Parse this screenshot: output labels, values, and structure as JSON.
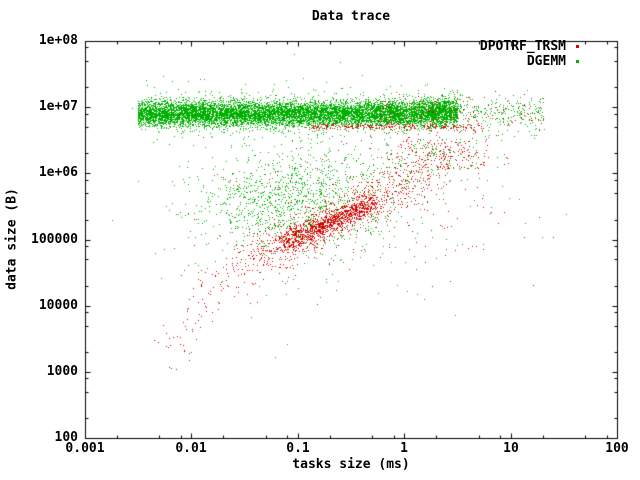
{
  "chart_data": {
    "type": "scatter",
    "title": "Data trace",
    "xlabel": "tasks size (ms)",
    "ylabel": "data size (B)",
    "xscale": "log",
    "yscale": "log",
    "xlim": [
      0.001,
      100
    ],
    "ylim": [
      100,
      100000000
    ],
    "grid": false,
    "marker": "dot",
    "legend_position": "inside-top-right",
    "x_ticks": [
      "0.001",
      "0.01",
      "0.1",
      "1",
      "10",
      "100"
    ],
    "y_ticks": [
      "1e+08",
      "1e+07",
      "1e+06",
      "100000",
      "10000",
      "1000",
      "100"
    ],
    "legend": {
      "items": [
        {
          "label": "DPOTRF_TRSM",
          "color": "#dc0000"
        },
        {
          "label": "DGEMM",
          "color": "#00b000"
        }
      ]
    },
    "seed": 7,
    "clusters_space": "log10(x in ms), log10(y in B); clusters approximate the ~14000 plotted dots",
    "series": [
      {
        "name": "DGEMM",
        "color": "#00b000",
        "clusters": [
          {
            "type": "band",
            "x0": -2.5,
            "x1": 0.5,
            "cy": 6.9,
            "sy": 0.095,
            "count": 9000
          },
          {
            "type": "band",
            "x0": -2.42,
            "x1": 0.55,
            "cy": 6.92,
            "sy": 0.2,
            "count": 600
          },
          {
            "type": "band",
            "x0": 0.45,
            "x1": 1.32,
            "cy": 6.88,
            "sy": 0.14,
            "count": 260
          },
          {
            "type": "blob",
            "cx": 0.33,
            "cy": 7.0,
            "sx": 0.1,
            "sy": 0.07,
            "count": 250
          },
          {
            "type": "blob",
            "cx": -1.05,
            "cy": 5.55,
            "sx": 0.4,
            "sy": 0.35,
            "count": 1000
          },
          {
            "type": "blob",
            "cx": -0.9,
            "cy": 5.6,
            "sx": 0.65,
            "sy": 0.6,
            "count": 350
          },
          {
            "type": "blob",
            "cx": 0.25,
            "cy": 6.22,
            "sx": 0.28,
            "sy": 0.18,
            "count": 160
          },
          {
            "type": "blob",
            "cx": -0.55,
            "cy": 5.9,
            "sx": 0.85,
            "sy": 0.75,
            "count": 120
          },
          {
            "type": "blob",
            "cx": -1.3,
            "cy": 3.9,
            "sx": 0.5,
            "sy": 0.5,
            "count": 6
          }
        ]
      },
      {
        "name": "DPOTRF_TRSM",
        "color": "#dc0000",
        "clusters": [
          {
            "type": "diag",
            "x0": -1.1,
            "y0": 4.93,
            "x1": -0.3,
            "y1": 5.55,
            "jx": 0.07,
            "jy": 0.07,
            "count": 900
          },
          {
            "type": "diag",
            "x0": -1.45,
            "y0": 4.7,
            "x1": 0.1,
            "y1": 5.9,
            "jx": 0.15,
            "jy": 0.13,
            "count": 500
          },
          {
            "type": "diag",
            "x0": -1.85,
            "y0": 4.25,
            "x1": 0.5,
            "y1": 6.35,
            "jx": 0.2,
            "jy": 0.17,
            "count": 350
          },
          {
            "type": "blob",
            "cx": 0.33,
            "cy": 6.28,
            "sx": 0.28,
            "sy": 0.17,
            "count": 180
          },
          {
            "type": "diag",
            "x0": -2.2,
            "y0": 3.4,
            "x1": -1.75,
            "y1": 4.25,
            "jx": 0.08,
            "jy": 0.12,
            "count": 45
          },
          {
            "type": "band",
            "x0": -0.9,
            "x1": 0.75,
            "cy": 6.7,
            "sy": 0.025,
            "count": 220
          },
          {
            "type": "band",
            "x0": -0.3,
            "x1": 1.3,
            "cy": 6.92,
            "sy": 0.13,
            "count": 130
          },
          {
            "type": "blob",
            "cx": -0.35,
            "cy": 5.45,
            "sx": 0.7,
            "sy": 0.55,
            "count": 160
          },
          {
            "type": "blob",
            "cx": -2.1,
            "cy": 3.35,
            "sx": 0.1,
            "sy": 0.25,
            "count": 8
          }
        ]
      }
    ]
  }
}
